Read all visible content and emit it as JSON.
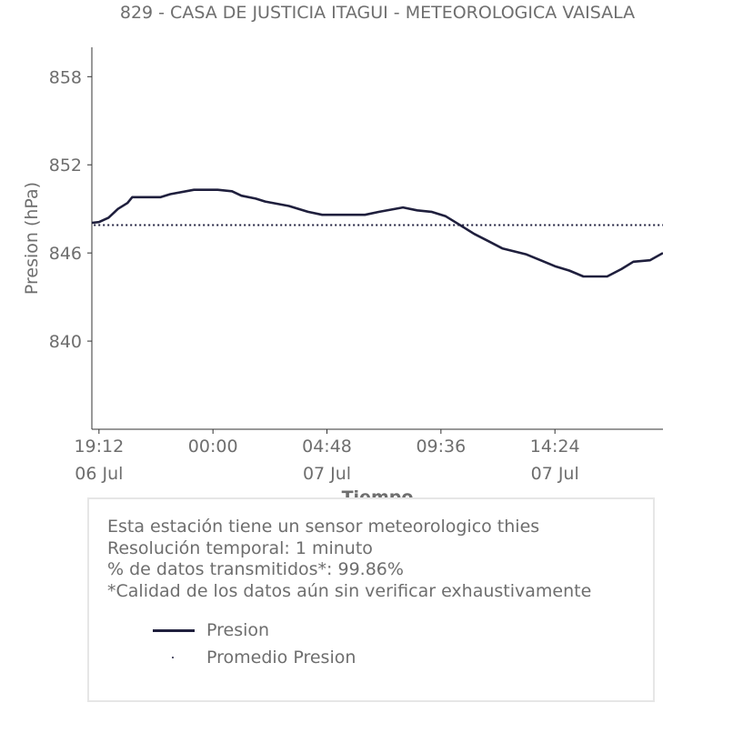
{
  "chart_data": {
    "type": "line",
    "title": "829 - CASA DE JUSTICIA ITAGUI - METEOROLOGICA VAISALA",
    "xlabel": "Tiempo",
    "ylabel": "Presion (hPa)",
    "ylim": [
      834,
      860
    ],
    "y_ticks": [
      840,
      846,
      852,
      858
    ],
    "x_range_hours": [
      -0.3,
      23.75
    ],
    "x_ticks": [
      {
        "h": 0,
        "time": "19:12",
        "date": "06 Jul"
      },
      {
        "h": 4.8,
        "time": "00:00",
        "date": ""
      },
      {
        "h": 9.6,
        "time": "04:48",
        "date": "07 Jul"
      },
      {
        "h": 14.4,
        "time": "09:36",
        "date": ""
      },
      {
        "h": 19.2,
        "time": "14:24",
        "date": "07 Jul"
      }
    ],
    "series": [
      {
        "name": "Presion",
        "color": "#1f1f3d",
        "style": "solid",
        "x_hours": [
          -0.6,
          0.0,
          0.4,
          0.8,
          1.2,
          1.4,
          2.6,
          3.0,
          4.0,
          4.4,
          5.0,
          5.6,
          6.0,
          6.6,
          7.0,
          8.0,
          8.8,
          9.4,
          10.0,
          11.2,
          11.8,
          12.8,
          13.4,
          14.0,
          14.6,
          15.0,
          15.4,
          15.8,
          16.4,
          17.0,
          18.0,
          18.6,
          19.2,
          19.8,
          20.4,
          20.8,
          21.4,
          22.0,
          22.5,
          23.2,
          23.75
        ],
        "y_values": [
          848.0,
          848.1,
          848.4,
          849.0,
          849.4,
          849.8,
          849.8,
          850.0,
          850.3,
          850.3,
          850.3,
          850.2,
          849.9,
          849.7,
          849.5,
          849.2,
          848.8,
          848.6,
          848.6,
          848.6,
          848.8,
          849.1,
          848.9,
          848.8,
          848.5,
          848.1,
          847.7,
          847.3,
          846.8,
          846.3,
          845.9,
          845.5,
          845.1,
          844.8,
          844.4,
          844.4,
          844.4,
          844.9,
          845.4,
          845.5,
          846.0
        ]
      },
      {
        "name": "Promedio Presion",
        "color": "#1f1f3d",
        "style": "dotted",
        "x_hours": [
          -0.6,
          23.75
        ],
        "y_values": [
          847.9,
          847.9
        ]
      }
    ],
    "legend": [
      "Presion",
      "Promedio Presion"
    ],
    "grid": false
  },
  "info_box": {
    "lines": [
      "Esta estación tiene un sensor meteorologico thies",
      "Resolución temporal: 1 minuto",
      "% de datos transmitidos*: 99.86%",
      "*Calidad de los datos aún sin verificar exhaustivamente"
    ],
    "legend_line_label": "Presion",
    "legend_dots_label": "Promedio Presion"
  }
}
